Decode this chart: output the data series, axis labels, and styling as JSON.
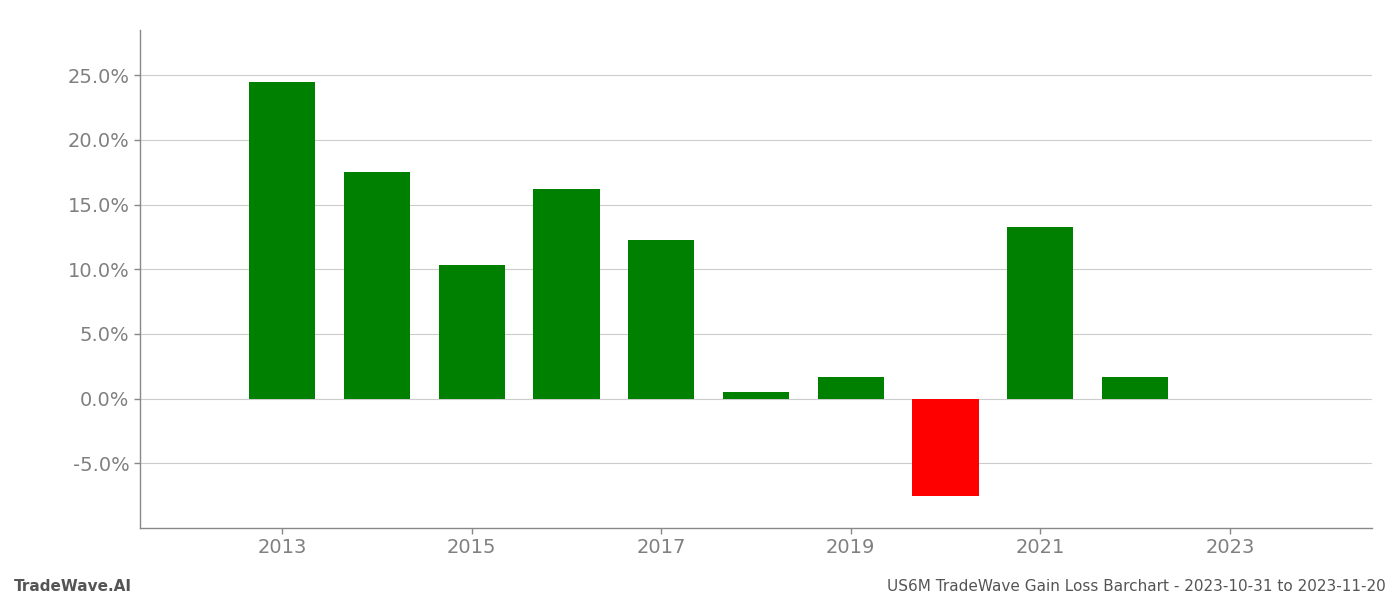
{
  "years": [
    2013,
    2014,
    2015,
    2016,
    2017,
    2018,
    2019,
    2020,
    2021,
    2022,
    2023
  ],
  "values": [
    0.245,
    0.175,
    0.103,
    0.162,
    0.123,
    0.005,
    0.017,
    -0.075,
    0.133,
    0.017,
    null
  ],
  "colors": [
    "#008000",
    "#008000",
    "#008000",
    "#008000",
    "#008000",
    "#008000",
    "#008000",
    "#ff0000",
    "#008000",
    "#008000",
    null
  ],
  "ylim": [
    -0.1,
    0.285
  ],
  "yticks": [
    -0.05,
    0.0,
    0.05,
    0.1,
    0.15,
    0.2,
    0.25
  ],
  "xticks": [
    2013,
    2015,
    2017,
    2019,
    2021,
    2023
  ],
  "xlim": [
    2011.5,
    2024.5
  ],
  "bar_width": 0.7,
  "footer_left": "TradeWave.AI",
  "footer_right": "US6M TradeWave Gain Loss Barchart - 2023-10-31 to 2023-11-20",
  "background_color": "#ffffff",
  "grid_color": "#cccccc",
  "spine_color": "#888888",
  "tick_label_color": "#808080",
  "footer_color": "#555555",
  "footer_fontsize": 11,
  "tick_fontsize": 14
}
